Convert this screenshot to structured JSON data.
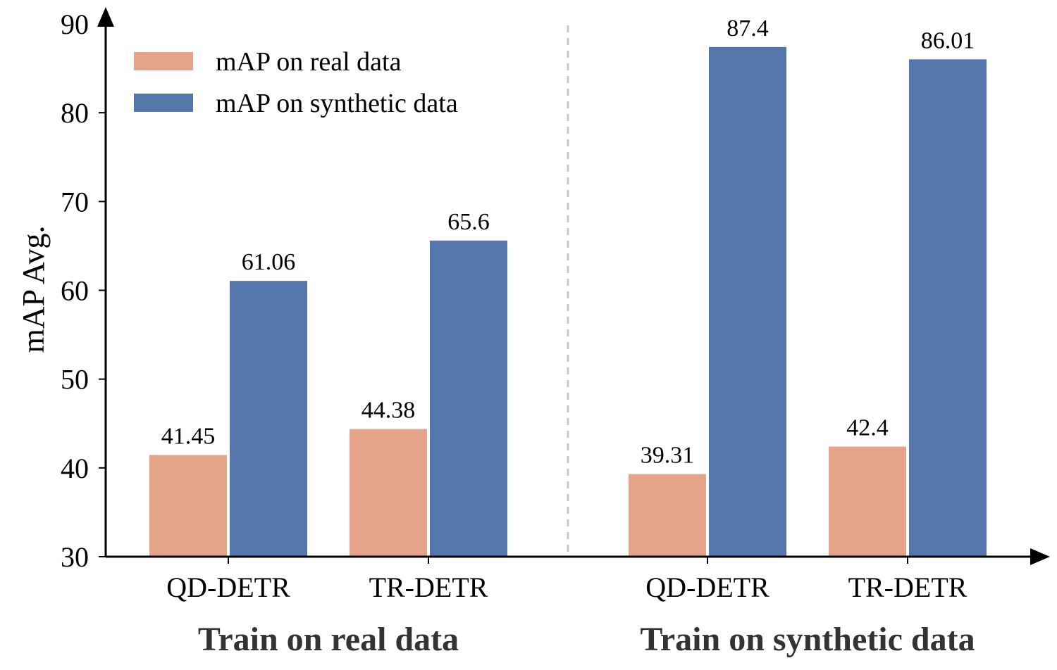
{
  "chart_data": {
    "type": "bar",
    "ylabel": "mAP Avg.",
    "ylim": [
      30,
      90
    ],
    "yticks": [
      30,
      40,
      50,
      60,
      70,
      80,
      90
    ],
    "legend_position": "top-left",
    "grid": false,
    "colors": {
      "real": "#E5A38A",
      "synthetic": "#5577AC",
      "divider": "#C8C8C8"
    },
    "series": [
      {
        "name": "mAP on real data",
        "key": "real"
      },
      {
        "name": "mAP on synthetic data",
        "key": "synthetic"
      }
    ],
    "groups": [
      {
        "label": "Train on real data",
        "categories": [
          {
            "label": "QD-DETR",
            "values": [
              41.45,
              61.06
            ],
            "value_labels": [
              "41.45",
              "61.06"
            ]
          },
          {
            "label": "TR-DETR",
            "values": [
              44.38,
              65.6
            ],
            "value_labels": [
              "44.38",
              "65.6"
            ]
          }
        ]
      },
      {
        "label": "Train on synthetic data",
        "categories": [
          {
            "label": "QD-DETR",
            "values": [
              39.31,
              87.4
            ],
            "value_labels": [
              "39.31",
              "87.4"
            ]
          },
          {
            "label": "TR-DETR",
            "values": [
              42.4,
              86.01
            ],
            "value_labels": [
              "42.4",
              "86.01"
            ]
          }
        ]
      }
    ]
  }
}
